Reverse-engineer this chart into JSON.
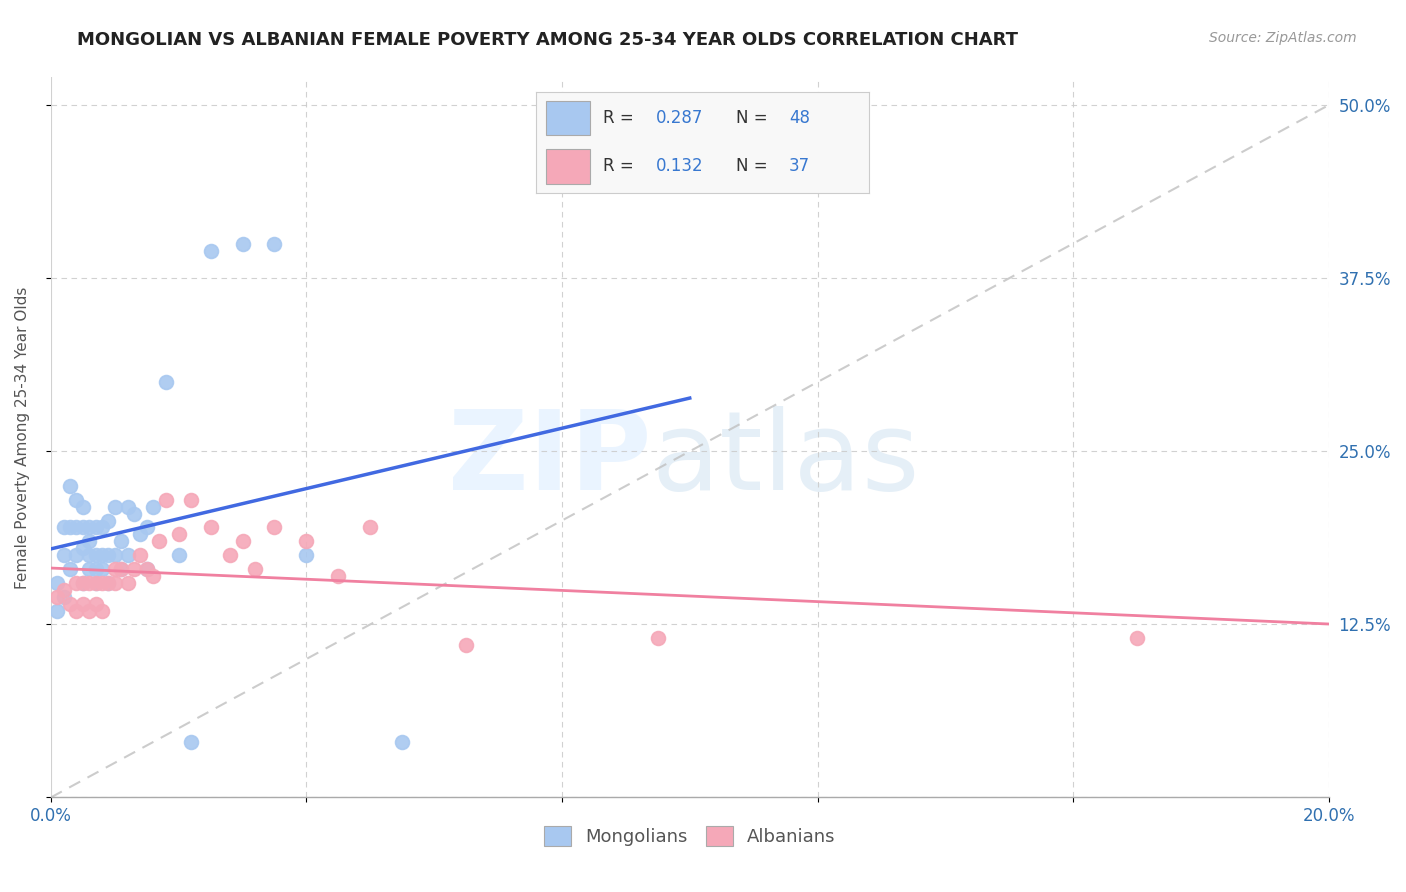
{
  "title": "MONGOLIAN VS ALBANIAN FEMALE POVERTY AMONG 25-34 YEAR OLDS CORRELATION CHART",
  "source": "Source: ZipAtlas.com",
  "ylabel": "Female Poverty Among 25-34 Year Olds",
  "xlim": [
    0.0,
    0.2
  ],
  "ylim": [
    0.0,
    0.52
  ],
  "x_ticks": [
    0.0,
    0.04,
    0.08,
    0.12,
    0.16,
    0.2
  ],
  "x_tick_labels": [
    "0.0%",
    "",
    "",
    "",
    "",
    "20.0%"
  ],
  "y_ticks": [
    0.0,
    0.125,
    0.25,
    0.375,
    0.5
  ],
  "y_tick_labels_right": [
    "",
    "12.5%",
    "25.0%",
    "37.5%",
    "50.0%"
  ],
  "mongolian_color": "#a8c8f0",
  "albanian_color": "#f5a8b8",
  "mongolian_line_color": "#4169e1",
  "albanian_line_color": "#f080a0",
  "diagonal_color": "#c0c0c0",
  "mongolian_x": [
    0.001,
    0.001,
    0.002,
    0.002,
    0.002,
    0.003,
    0.003,
    0.003,
    0.004,
    0.004,
    0.004,
    0.005,
    0.005,
    0.005,
    0.005,
    0.006,
    0.006,
    0.006,
    0.006,
    0.007,
    0.007,
    0.007,
    0.007,
    0.008,
    0.008,
    0.008,
    0.009,
    0.009,
    0.009,
    0.01,
    0.01,
    0.011,
    0.011,
    0.012,
    0.012,
    0.013,
    0.014,
    0.015,
    0.015,
    0.016,
    0.018,
    0.02,
    0.022,
    0.025,
    0.03,
    0.035,
    0.04,
    0.055
  ],
  "mongolian_y": [
    0.155,
    0.135,
    0.195,
    0.175,
    0.145,
    0.225,
    0.195,
    0.165,
    0.215,
    0.195,
    0.175,
    0.21,
    0.195,
    0.18,
    0.155,
    0.195,
    0.185,
    0.175,
    0.165,
    0.195,
    0.175,
    0.165,
    0.155,
    0.195,
    0.175,
    0.165,
    0.2,
    0.175,
    0.155,
    0.21,
    0.175,
    0.185,
    0.165,
    0.21,
    0.175,
    0.205,
    0.19,
    0.195,
    0.165,
    0.21,
    0.3,
    0.175,
    0.04,
    0.395,
    0.4,
    0.4,
    0.175,
    0.04
  ],
  "albanian_x": [
    0.001,
    0.002,
    0.003,
    0.004,
    0.004,
    0.005,
    0.005,
    0.006,
    0.006,
    0.007,
    0.007,
    0.008,
    0.008,
    0.009,
    0.01,
    0.01,
    0.011,
    0.012,
    0.013,
    0.014,
    0.015,
    0.016,
    0.017,
    0.018,
    0.02,
    0.022,
    0.025,
    0.028,
    0.03,
    0.032,
    0.035,
    0.04,
    0.045,
    0.05,
    0.065,
    0.095,
    0.17
  ],
  "albanian_y": [
    0.145,
    0.15,
    0.14,
    0.155,
    0.135,
    0.155,
    0.14,
    0.155,
    0.135,
    0.155,
    0.14,
    0.155,
    0.135,
    0.155,
    0.165,
    0.155,
    0.165,
    0.155,
    0.165,
    0.175,
    0.165,
    0.16,
    0.185,
    0.215,
    0.19,
    0.215,
    0.195,
    0.175,
    0.185,
    0.165,
    0.195,
    0.185,
    0.16,
    0.195,
    0.11,
    0.115,
    0.115
  ],
  "background_color": "#ffffff",
  "grid_color": "#cccccc"
}
